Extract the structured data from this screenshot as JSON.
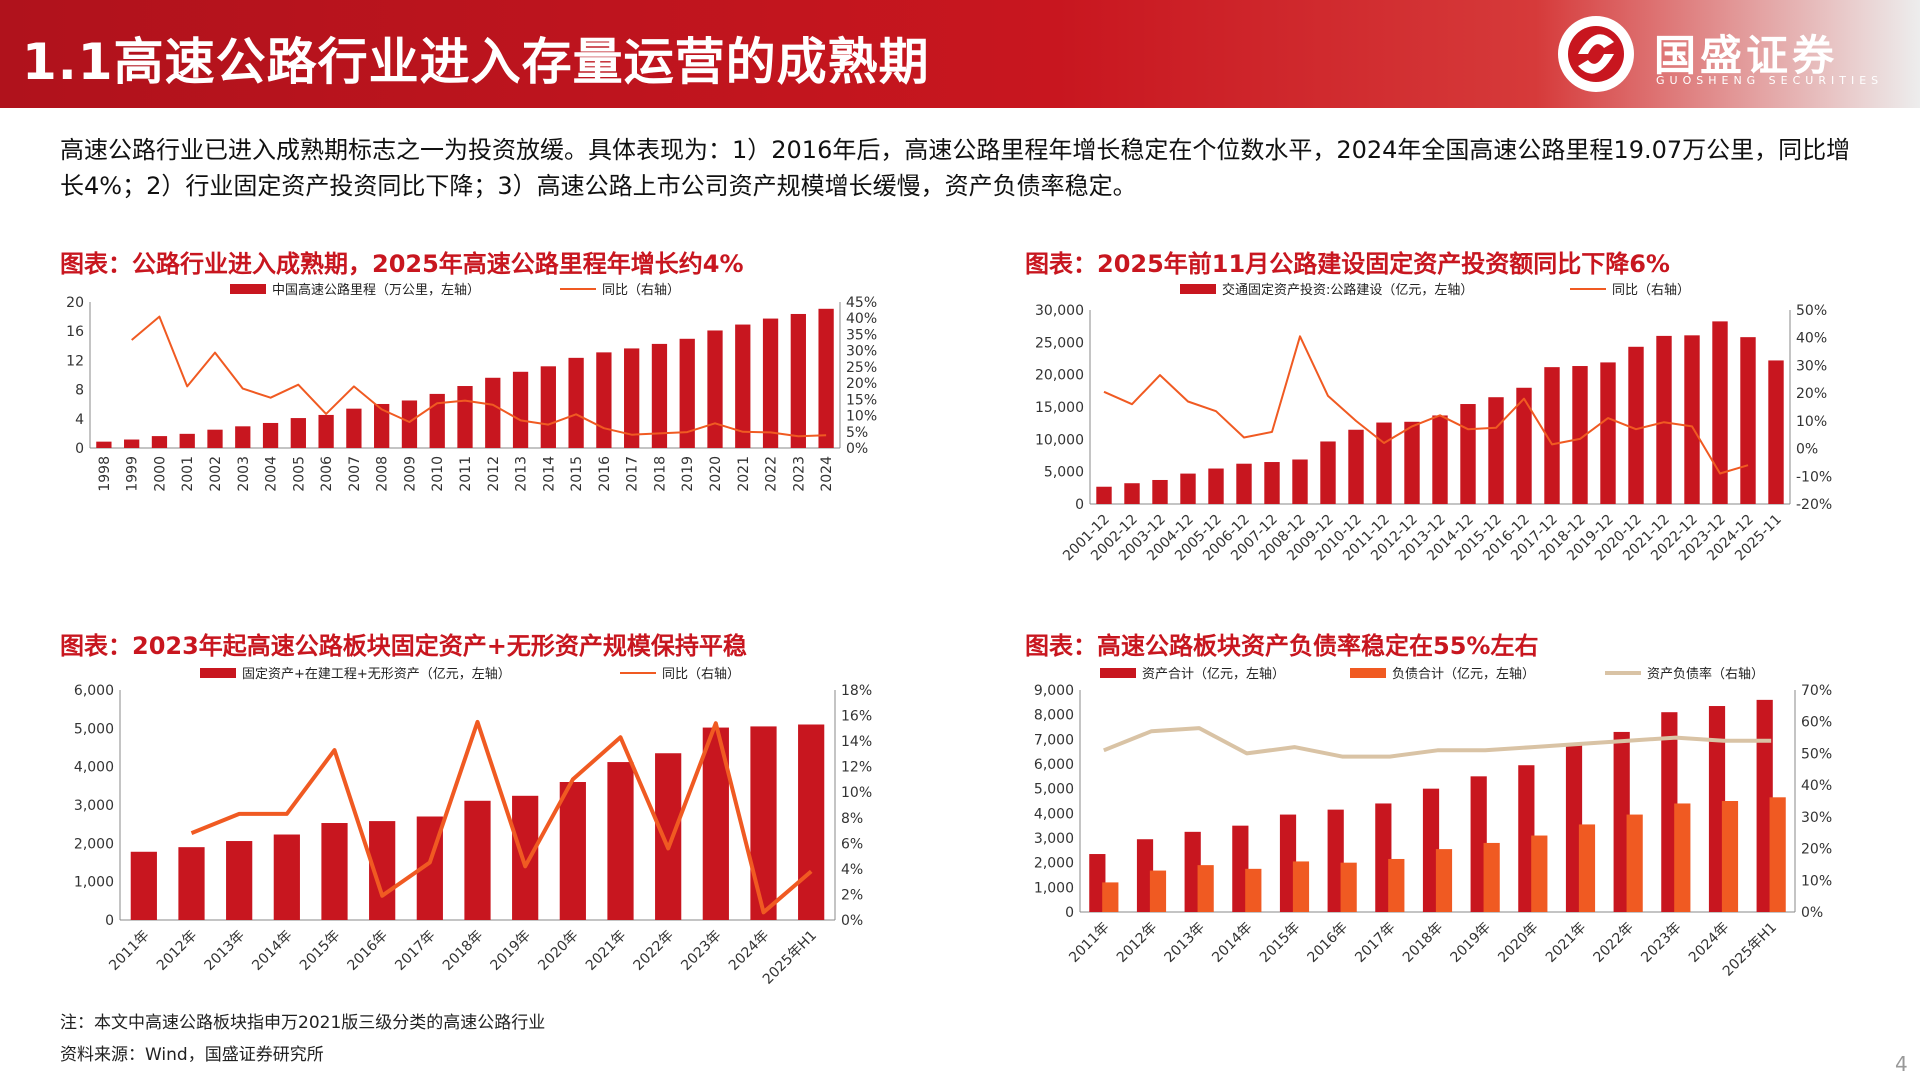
{
  "header": {
    "title": "1.1高速公路行业进入存量运营的成熟期",
    "logo_name": "国盛证券",
    "logo_sub": "GUOSHENG SECURITIES"
  },
  "intro": "高速公路行业已进入成熟期标志之一为投资放缓。具体表现为：1）2016年后，高速公路里程年增长稳定在个位数水平，2024年全国高速公路里程19.07万公里，同比增长4%；2）行业固定资产投资同比下降；3）高速公路上市公司资产规模增长缓慢，资产负债率稳定。",
  "charts_titles": {
    "c1": "图表：公路行业进入成熟期，2025年高速公路里程年增长约4%",
    "c2": "图表：2025年前11月公路建设固定资产投资额同比下降6%",
    "c3": "图表：2023年起高速公路板块固定资产+无形资产规模保持平稳",
    "c4": "图表：高速公路板块资产负债率稳定在55%左右"
  },
  "chart_data": [
    {
      "type": "bar",
      "title": "图表：公路行业进入成熟期，2025年高速公路里程年增长约4%",
      "categories": [
        "1998",
        "1999",
        "2000",
        "2001",
        "2002",
        "2003",
        "2004",
        "2005",
        "2006",
        "2007",
        "2008",
        "2009",
        "2010",
        "2011",
        "2012",
        "2013",
        "2014",
        "2015",
        "2016",
        "2017",
        "2018",
        "2019",
        "2020",
        "2021",
        "2022",
        "2023",
        "2024"
      ],
      "series": [
        {
          "name": "中国高速公路里程（万公里，左轴）",
          "type": "bar",
          "axis": "left",
          "color": "#c8161f",
          "values": [
            0.87,
            1.16,
            1.63,
            1.94,
            2.51,
            2.97,
            3.43,
            4.1,
            4.53,
            5.39,
            6.03,
            6.51,
            7.41,
            8.49,
            9.62,
            10.44,
            11.19,
            12.35,
            13.1,
            13.64,
            14.26,
            14.96,
            16.1,
            16.91,
            17.73,
            18.36,
            19.07
          ]
        },
        {
          "name": "同比（右轴）",
          "type": "line",
          "axis": "right",
          "color": "#f05a22",
          "values": [
            null,
            33.3,
            40.5,
            19.0,
            29.4,
            18.3,
            15.5,
            19.5,
            10.5,
            19.0,
            11.9,
            8.0,
            13.8,
            14.6,
            13.3,
            8.5,
            7.2,
            10.4,
            6.1,
            4.1,
            4.5,
            4.9,
            7.6,
            5.0,
            4.8,
            3.6,
            3.9
          ]
        }
      ],
      "ylim_left": [
        0,
        20
      ],
      "yticks_left": [
        "0",
        "4",
        "8",
        "12",
        "16",
        "20"
      ],
      "ylim_right": [
        0,
        45
      ],
      "yticks_right": [
        "0%",
        "5%",
        "10%",
        "15%",
        "20%",
        "25%",
        "30%",
        "35%",
        "40%",
        "45%"
      ],
      "legend": "top",
      "grid": false
    },
    {
      "type": "bar",
      "title": "图表：2025年前11月公路建设固定资产投资额同比下降6%",
      "categories": [
        "2001-12",
        "2002-12",
        "2003-12",
        "2004-12",
        "2005-12",
        "2006-12",
        "2007-12",
        "2008-12",
        "2009-12",
        "2010-12",
        "2011-12",
        "2012-12",
        "2013-12",
        "2014-12",
        "2015-12",
        "2016-12",
        "2017-12",
        "2018-12",
        "2019-12",
        "2020-12",
        "2021-12",
        "2022-12",
        "2023-12",
        "2024-12",
        "2025-11"
      ],
      "series": [
        {
          "name": "交通固定资产投资:公路建设（亿元，左轴）",
          "type": "bar",
          "axis": "left",
          "color": "#c8161f",
          "values": [
            2670,
            3212,
            3715,
            4702,
            5485,
            6231,
            6490,
            6881,
            9669,
            11482,
            12596,
            12714,
            13692,
            15460,
            16513,
            17975,
            21162,
            21335,
            21895,
            24312,
            25995,
            26082,
            28240,
            25800,
            22200
          ]
        },
        {
          "name": "同比（右轴）",
          "type": "line",
          "axis": "right",
          "color": "#f05a22",
          "values": [
            20.5,
            16.0,
            26.5,
            17.0,
            13.5,
            4.0,
            6.0,
            40.5,
            19.0,
            10.0,
            2.0,
            8.0,
            12.0,
            7.0,
            7.5,
            18.0,
            1.5,
            3.5,
            11.0,
            7.0,
            9.5,
            8.0,
            -9.0,
            -6.0,
            null
          ]
        }
      ],
      "ylim_left": [
        0,
        30000
      ],
      "yticks_left": [
        "0",
        "5,000",
        "10,000",
        "15,000",
        "20,000",
        "25,000",
        "30,000"
      ],
      "ylim_right": [
        -20,
        50
      ],
      "yticks_right": [
        "-20%",
        "-10%",
        "0%",
        "10%",
        "20%",
        "30%",
        "40%",
        "50%"
      ],
      "legend": "top",
      "grid": false
    },
    {
      "type": "bar",
      "title": "图表：2023年起高速公路板块固定资产+无形资产规模保持平稳",
      "categories": [
        "2011年",
        "2012年",
        "2013年",
        "2014年",
        "2015年",
        "2016年",
        "2017年",
        "2018年",
        "2019年",
        "2020年",
        "2021年",
        "2022年",
        "2023年",
        "2024年",
        "2025年H1"
      ],
      "series": [
        {
          "name": "固定资产+在建工程+无形资产（亿元，左轴）",
          "type": "bar",
          "axis": "left",
          "color": "#c8161f",
          "values": [
            1780,
            1900,
            2060,
            2230,
            2530,
            2580,
            2700,
            3110,
            3240,
            3600,
            4120,
            4350,
            5020,
            5050,
            5100
          ]
        },
        {
          "name": "同比（右轴）",
          "type": "line",
          "axis": "right",
          "color": "#f05a22",
          "values": [
            null,
            6.8,
            8.3,
            8.3,
            13.3,
            1.9,
            4.5,
            15.5,
            4.2,
            11.0,
            14.3,
            5.6,
            15.4,
            0.6,
            3.8
          ]
        }
      ],
      "ylim_left": [
        0,
        6000
      ],
      "yticks_left": [
        "0",
        "1,000",
        "2,000",
        "3,000",
        "4,000",
        "5,000",
        "6,000"
      ],
      "ylim_right": [
        0,
        18
      ],
      "yticks_right": [
        "0%",
        "2%",
        "4%",
        "6%",
        "8%",
        "10%",
        "12%",
        "14%",
        "16%",
        "18%"
      ],
      "legend": "top",
      "grid": false
    },
    {
      "type": "bar",
      "title": "图表：高速公路板块资产负债率稳定在55%左右",
      "categories": [
        "2011年",
        "2012年",
        "2013年",
        "2014年",
        "2015年",
        "2016年",
        "2017年",
        "2018年",
        "2019年",
        "2020年",
        "2021年",
        "2022年",
        "2023年",
        "2024年",
        "2025年H1"
      ],
      "series": [
        {
          "name": "资产合计（亿元，左轴）",
          "type": "bar",
          "axis": "left",
          "color": "#c8161f",
          "values": [
            2350,
            2950,
            3250,
            3500,
            3950,
            4150,
            4400,
            5000,
            5500,
            5950,
            6750,
            7300,
            8100,
            8350,
            8600
          ]
        },
        {
          "name": "负债合计（亿元，左轴）",
          "type": "bar",
          "axis": "left",
          "color": "#f05a22",
          "values": [
            1200,
            1680,
            1900,
            1750,
            2050,
            2000,
            2150,
            2550,
            2800,
            3100,
            3550,
            3950,
            4400,
            4500,
            4650
          ]
        },
        {
          "name": "资产负债率（右轴）",
          "type": "line",
          "axis": "right",
          "color": "#d9c3a5",
          "values": [
            51,
            57,
            58,
            50,
            52,
            49,
            49,
            51,
            51,
            52,
            53,
            54,
            55,
            54,
            54
          ]
        }
      ],
      "ylim_left": [
        0,
        9000
      ],
      "yticks_left": [
        "0",
        "1,000",
        "2,000",
        "3,000",
        "4,000",
        "5,000",
        "6,000",
        "7,000",
        "8,000",
        "9,000"
      ],
      "ylim_right": [
        0,
        70
      ],
      "yticks_right": [
        "0%",
        "10%",
        "20%",
        "30%",
        "40%",
        "50%",
        "60%",
        "70%"
      ],
      "legend": "top",
      "grid": false
    }
  ],
  "footnotes": {
    "note": "注：本文中高速公路板块指申万2021版三级分类的高速公路行业",
    "source": "资料来源：Wind，国盛证券研究所"
  },
  "page_number": "4"
}
